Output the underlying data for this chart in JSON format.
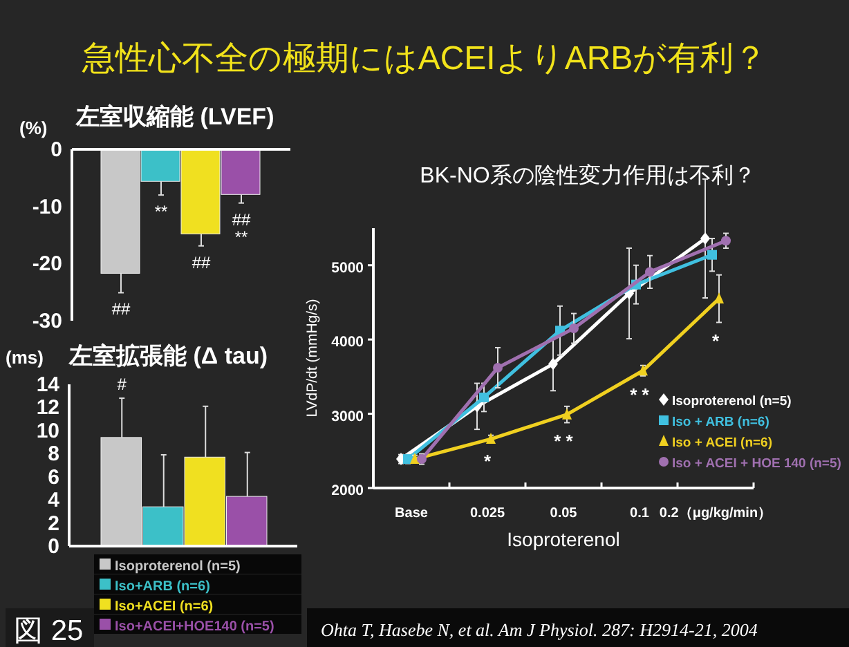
{
  "chart_data": [
    {
      "type": "other",
      "title": "急性心不全の極期にはACEIよりARBが有利？",
      "annotations": [
        "図 25",
        "Ohta T, Hasebe N, et al. Am J Physiol. 287: H2914-21, 2004"
      ]
    },
    {
      "type": "bar",
      "title": "左室収縮能 (LVEF)",
      "ylabel": "(%)",
      "categories": [
        null,
        null,
        null,
        null
      ],
      "values": [
        -21.7,
        -5.6,
        -14.8,
        -7.9
      ],
      "colors": [
        "#c8c8c8",
        "#3cc0c8",
        "#f0e020",
        "#9a50a8"
      ],
      "errors": [
        [
          -25.1,
          -21.7
        ],
        [
          -8.0,
          -5.6
        ],
        [
          -16.9,
          -14.8
        ],
        [
          -9.4,
          -7.9
        ]
      ],
      "ylim": [
        -30,
        0
      ],
      "yticks": [
        -30,
        -20,
        -10,
        0
      ],
      "annotations": [
        "##",
        "**",
        "##",
        "##\n**"
      ]
    },
    {
      "type": "bar",
      "title": "左室拡張能 (Δ tau)",
      "ylabel": "(ms)",
      "categories": [
        null
      ],
      "series": [
        {
          "name": "Isoproterenol (n=5)",
          "color": "#c8c8c8",
          "values": [
            9.4
          ],
          "errors": [
            [
              9.4,
              12.8
            ]
          ]
        },
        {
          "name": "Iso+ARB (n=6)",
          "color": "#3cc0c8",
          "values": [
            3.4
          ],
          "errors": [
            [
              3.4,
              7.9
            ]
          ]
        },
        {
          "name": "Iso+ACEI (n=6)",
          "color": "#f0e020",
          "values": [
            7.7
          ],
          "errors": [
            [
              7.7,
              12.1
            ]
          ]
        },
        {
          "name": "Iso+ACEI+HOE140 (n=5)",
          "color": "#9a50a8",
          "values": [
            4.3
          ],
          "errors": [
            [
              4.3,
              8.1
            ]
          ]
        }
      ],
      "ylim": [
        0,
        14
      ],
      "yticks": [
        0,
        2,
        4,
        6,
        8,
        10,
        12,
        14
      ],
      "legend": "bottom",
      "annotations": [
        "#"
      ]
    },
    {
      "type": "line",
      "title": "BK-NO系の陰性変力作用は不利？",
      "xlabel": "Isoproterenol",
      "ylabel": "LVdP/dt (mmHg/s)",
      "categories": [
        "Base",
        "0.025",
        "0.05",
        "0.1",
        "0.2（μg/kg/min）"
      ],
      "series": [
        {
          "name": "Isoproterenol (n=5)",
          "color": "#ffffff",
          "marker": "diamond",
          "values": [
            2390,
            3100,
            3670,
            4620,
            5360
          ],
          "errors": [
            60,
            310,
            360,
            610,
            800
          ]
        },
        {
          "name": "Iso + ARB  (n=6)",
          "color": "#40c0e0",
          "marker": "square",
          "values": [
            2390,
            3220,
            4120,
            4740,
            5140
          ],
          "errors": [
            60,
            190,
            330,
            260,
            220
          ]
        },
        {
          "name": "Iso + ACEI (n=6)",
          "color": "#f0d020",
          "marker": "triangle",
          "values": [
            2390,
            2660,
            2990,
            3580,
            4550
          ],
          "errors": [
            50,
            50,
            110,
            70,
            320
          ]
        },
        {
          "name": "Iso + ACEI + HOE 140 (n=5)",
          "color": "#a070b0",
          "marker": "circle",
          "values": [
            2390,
            3620,
            4150,
            4910,
            5330
          ],
          "errors": [
            70,
            270,
            200,
            220,
            100
          ]
        }
      ],
      "ylim": [
        2000,
        5500
      ],
      "yticks": [
        2000,
        3000,
        4000,
        5000
      ],
      "legend": "right",
      "annotations": [
        "*",
        "* *",
        "* *",
        "*"
      ]
    }
  ]
}
